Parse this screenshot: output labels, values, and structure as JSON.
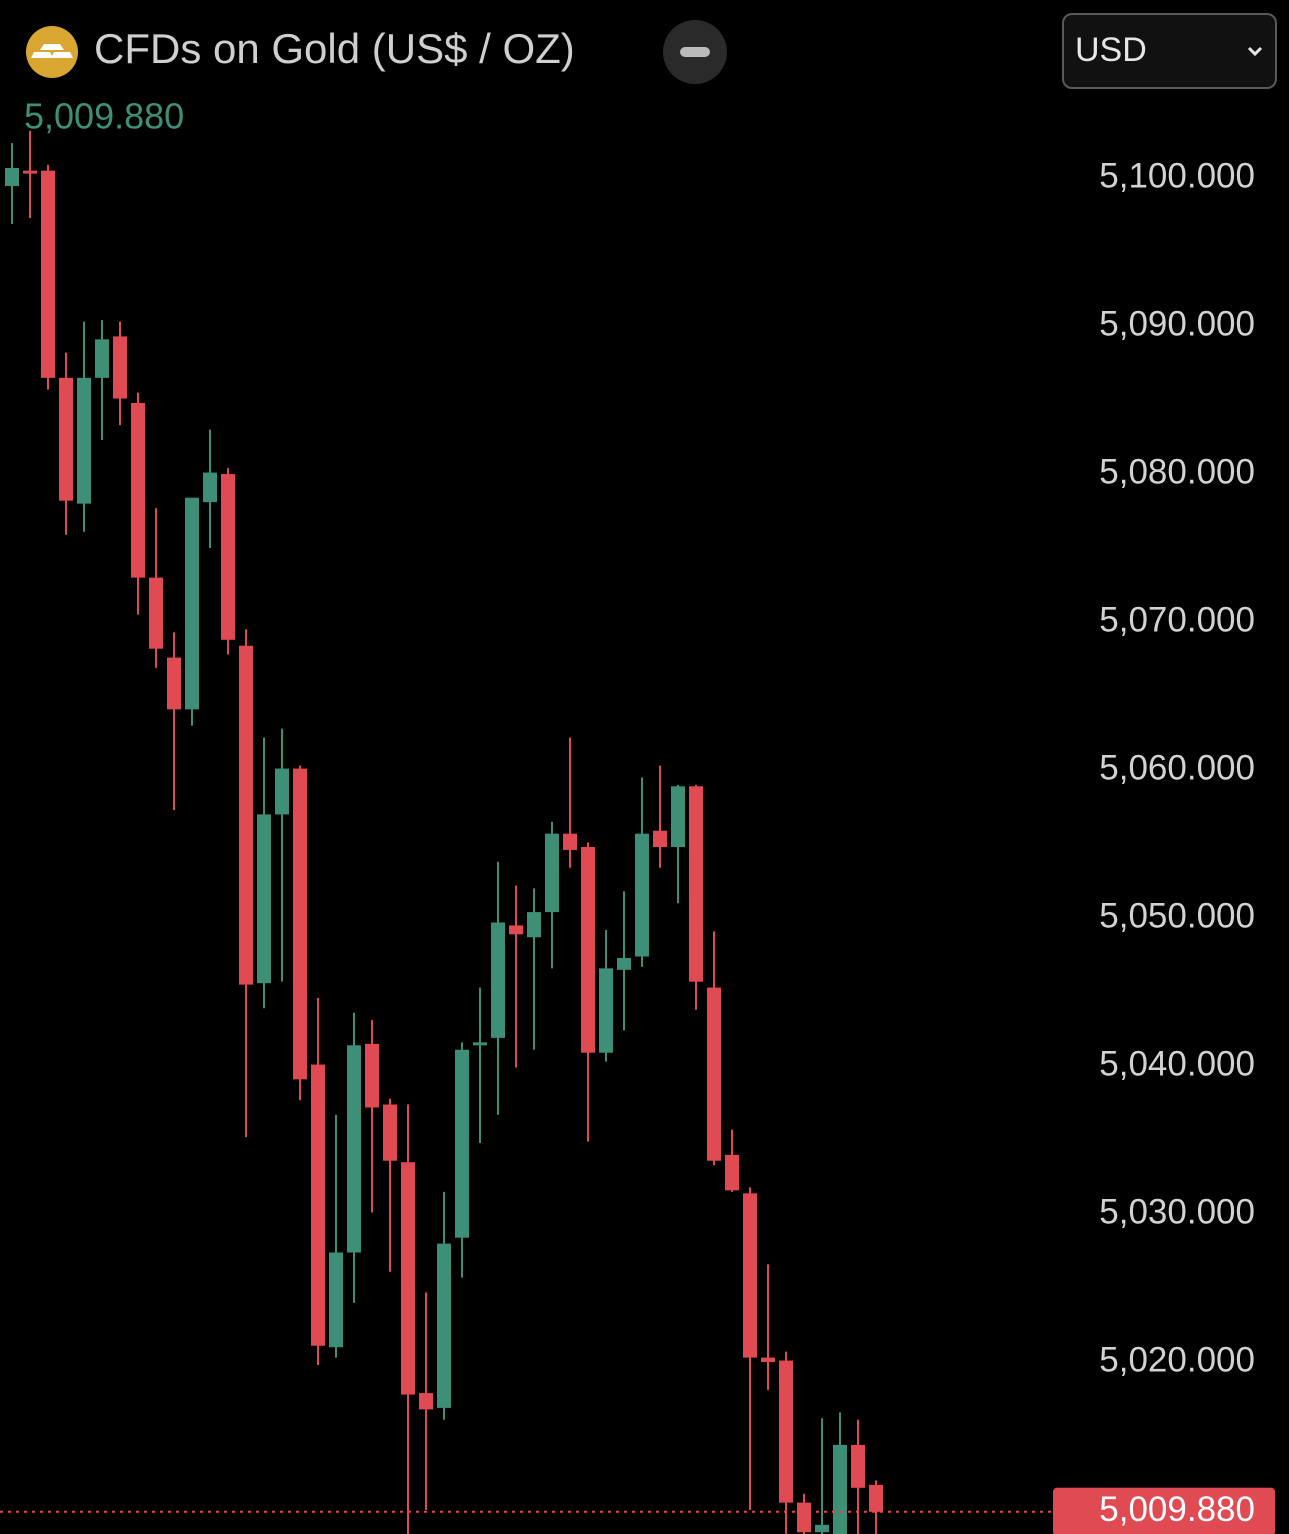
{
  "header": {
    "title": "CFDs on Gold (US$ / OZ)",
    "currency": "USD"
  },
  "chart_data": {
    "type": "candlestick",
    "up_color": "#3e8f77",
    "down_color": "#e04a52",
    "ylim": [
      5008.38,
      5112.03
    ],
    "yticks": [
      {
        "value": 5100,
        "label": "5,100.000"
      },
      {
        "value": 5090,
        "label": "5,090.000"
      },
      {
        "value": 5080,
        "label": "5,080.000"
      },
      {
        "value": 5070,
        "label": "5,070.000"
      },
      {
        "value": 5060,
        "label": "5,060.000"
      },
      {
        "value": 5050,
        "label": "5,050.000"
      },
      {
        "value": 5040,
        "label": "5,040.000"
      },
      {
        "value": 5030,
        "label": "5,030.000"
      },
      {
        "value": 5020,
        "label": "5,020.000"
      }
    ],
    "last_price": {
      "value": 5009.88,
      "label": "5,009.880"
    },
    "open": [
      5099.46,
      5100.5,
      5100.5,
      5086.5,
      5078.0,
      5086.5,
      5089.3,
      5084.8,
      5073.0,
      5067.6,
      5064.1,
      5078.1,
      5080.0,
      5068.4,
      5045.6,
      5057.0,
      5060.1,
      5040.1,
      5021.0,
      5027.4,
      5041.5,
      5037.4,
      5033.5,
      5017.9,
      5016.9,
      5028.4,
      5041.4,
      5041.9,
      5049.5,
      5048.7,
      5050.4,
      5055.7,
      5054.8,
      5040.9,
      5046.5,
      5047.4,
      5055.9,
      5054.8,
      5058.9,
      5045.3,
      5034.0,
      5031.4,
      5020.3,
      5020.1,
      5010.5,
      5008.5,
      5008.3,
      5014.4,
      5011.7
    ],
    "high": [
      5102.36,
      5103.2,
      5100.9,
      5088.2,
      5090.3,
      5090.4,
      5090.3,
      5085.5,
      5077.7,
      5069.3,
      5078.4,
      5083.0,
      5080.4,
      5069.5,
      5062.2,
      5062.8,
      5060.3,
      5044.6,
      5036.7,
      5043.6,
      5043.1,
      5037.8,
      5037.4,
      5024.7,
      5031.5,
      5041.6,
      5045.3,
      5053.8,
      5052.2,
      5052.0,
      5056.5,
      5062.2,
      5055.1,
      5049.2,
      5051.8,
      5059.5,
      5060.3,
      5059.0,
      5059.0,
      5049.1,
      5035.7,
      5031.8,
      5026.6,
      5020.7,
      5011.1,
      5016.2,
      5016.6,
      5016.1,
      5012.0
    ],
    "low": [
      5096.89,
      5097.3,
      5085.7,
      5075.9,
      5076.1,
      5082.3,
      5083.3,
      5070.5,
      5066.9,
      5057.3,
      5063.0,
      5075.0,
      5067.8,
      5035.2,
      5043.9,
      5045.7,
      5037.7,
      5019.8,
      5020.3,
      5024.0,
      5030.1,
      5026.1,
      5008.3,
      5010.0,
      5016.1,
      5025.7,
      5034.8,
      5036.7,
      5039.9,
      5041.1,
      5046.6,
      5053.4,
      5034.9,
      5040.3,
      5042.4,
      5046.7,
      5053.4,
      5051.0,
      5043.8,
      5033.3,
      5031.5,
      5010.0,
      5018.1,
      5008.4,
      5008.3,
      5008.3,
      5008.3,
      5008.3,
      5008.3
    ],
    "close": [
      5100.68,
      5100.3,
      5086.5,
      5078.2,
      5086.5,
      5089.1,
      5085.1,
      5073.0,
      5068.2,
      5064.1,
      5078.4,
      5080.1,
      5068.8,
      5045.5,
      5057.0,
      5060.1,
      5039.1,
      5021.1,
      5027.4,
      5041.4,
      5037.2,
      5033.6,
      5017.8,
      5016.8,
      5028.0,
      5041.1,
      5041.6,
      5049.7,
      5048.9,
      5050.4,
      5055.7,
      5054.6,
      5040.9,
      5046.6,
      5047.3,
      5055.7,
      5054.8,
      5058.9,
      5045.7,
      5033.6,
      5031.6,
      5020.3,
      5020.0,
      5010.5,
      5008.5,
      5009.0,
      5014.4,
      5011.5,
      5009.88
    ]
  }
}
